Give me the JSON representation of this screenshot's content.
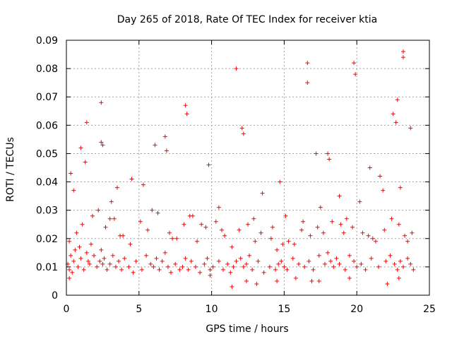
{
  "chart_data": {
    "type": "scatter",
    "title": "Day 265 of 2018, Rate Of TEC Index for receiver ktia",
    "xlabel": "GPS time / hours",
    "ylabel": "ROTI / TECUs",
    "xlim": [
      0,
      25
    ],
    "ylim": [
      0,
      0.09
    ],
    "xticks": [
      0,
      5,
      10,
      15,
      20,
      25
    ],
    "xtick_labels": [
      "0",
      "5",
      "10",
      "15",
      "20",
      "25"
    ],
    "yticks": [
      0,
      0.01,
      0.02,
      0.03,
      0.04,
      0.05,
      0.06,
      0.07,
      0.08,
      0.09
    ],
    "ytick_labels": [
      "0",
      "0.01",
      "0.02",
      "0.03",
      "0.04",
      "0.05",
      "0.06",
      "0.07",
      "0.08",
      "0.09"
    ],
    "grid": true,
    "marker": "+",
    "color": "#ff0000",
    "series": [
      {
        "name": "ROTI",
        "x": [
          0.1,
          0.2,
          0.3,
          0.4,
          0.5,
          0.6,
          0.8,
          1.0,
          1.2,
          1.4,
          1.5,
          1.6,
          1.7,
          1.9,
          2.1,
          2.3,
          2.4,
          2.5,
          2.6,
          2.8,
          3.0,
          3.2,
          3.4,
          3.6,
          3.8,
          4.0,
          4.3,
          4.6,
          4.8,
          5.2,
          5.5,
          5.8,
          6.0,
          6.2,
          6.4,
          6.6,
          6.8,
          7.0,
          7.2,
          7.5,
          7.8,
          8.0,
          8.2,
          8.4,
          8.6,
          8.9,
          9.2,
          9.5,
          9.7,
          9.9,
          10.1,
          10.5,
          10.8,
          11.1,
          11.3,
          11.5,
          11.7,
          12.0,
          12.2,
          12.4,
          12.6,
          12.8,
          13.2,
          13.6,
          14.0,
          14.4,
          14.6,
          14.8,
          15.0,
          15.2,
          15.6,
          16.0,
          16.4,
          16.7,
          17.0,
          17.4,
          17.8,
          18.0,
          18.2,
          18.4,
          18.6,
          18.8,
          19.2,
          19.5,
          19.8,
          20.0,
          20.3,
          20.6,
          21.0,
          21.5,
          22.0,
          22.3,
          22.6,
          22.8,
          23.0,
          23.2,
          23.5,
          23.7,
          23.9,
          0.3,
          1.4,
          2.4,
          3.1,
          6.8,
          8.2,
          11.7,
          12.1,
          16.6,
          16.6,
          19.8,
          19.9,
          23.2,
          23.2,
          22.8,
          22.5,
          2.4,
          6.9,
          8.3,
          0.5,
          1.0,
          3.5,
          4.5,
          5.3,
          9.8,
          13.5,
          14.7,
          17.2,
          18.0,
          20.9,
          21.6,
          23.7,
          3.0,
          5.9,
          8.5,
          9.3,
          10.5,
          12.9,
          14.2,
          15.1,
          16.3,
          17.5,
          18.8,
          20.2,
          21.8,
          23.0,
          0.2,
          0.7,
          1.1,
          1.8,
          2.2,
          2.7,
          3.3,
          3.9,
          4.4,
          5.1,
          5.6,
          6.3,
          7.1,
          7.6,
          8.1,
          8.7,
          9.0,
          9.6,
          10.3,
          10.9,
          11.4,
          11.9,
          12.5,
          13.0,
          13.4,
          14.1,
          14.5,
          15.3,
          15.7,
          16.2,
          16.8,
          17.3,
          17.7,
          18.3,
          18.9,
          19.3,
          19.7,
          20.4,
          20.8,
          21.3,
          21.9,
          22.4,
          22.9,
          23.3,
          23.8,
          1.3,
          2.5,
          6.1,
          12.2,
          18.1,
          22.7,
          0.9,
          3.7,
          7.3,
          10.7,
          14.9,
          19.1,
          21.1,
          23.5,
          11.4,
          12.4,
          13.1,
          14.5,
          15.8,
          16.9,
          22.1,
          22.9,
          0.2,
          9.9,
          17.4,
          19.5
        ],
        "y": [
          0.011,
          0.009,
          0.014,
          0.008,
          0.012,
          0.016,
          0.01,
          0.013,
          0.009,
          0.015,
          0.012,
          0.011,
          0.018,
          0.014,
          0.01,
          0.012,
          0.016,
          0.011,
          0.013,
          0.009,
          0.011,
          0.014,
          0.01,
          0.012,
          0.009,
          0.013,
          0.01,
          0.008,
          0.012,
          0.009,
          0.014,
          0.011,
          0.01,
          0.013,
          0.009,
          0.012,
          0.015,
          0.01,
          0.008,
          0.011,
          0.009,
          0.01,
          0.013,
          0.009,
          0.012,
          0.01,
          0.008,
          0.011,
          0.013,
          0.009,
          0.01,
          0.012,
          0.009,
          0.011,
          0.008,
          0.01,
          0.012,
          0.013,
          0.01,
          0.011,
          0.014,
          0.009,
          0.012,
          0.008,
          0.01,
          0.009,
          0.011,
          0.012,
          0.01,
          0.009,
          0.013,
          0.011,
          0.01,
          0.012,
          0.009,
          0.014,
          0.011,
          0.015,
          0.012,
          0.01,
          0.013,
          0.011,
          0.009,
          0.014,
          0.012,
          0.01,
          0.011,
          0.009,
          0.013,
          0.01,
          0.012,
          0.014,
          0.011,
          0.009,
          0.012,
          0.01,
          0.013,
          0.011,
          0.009,
          0.043,
          0.061,
          0.068,
          0.033,
          0.056,
          0.067,
          0.08,
          0.059,
          0.082,
          0.075,
          0.082,
          0.078,
          0.086,
          0.084,
          0.069,
          0.064,
          0.054,
          0.051,
          0.064,
          0.037,
          0.052,
          0.038,
          0.041,
          0.039,
          0.046,
          0.036,
          0.04,
          0.05,
          0.05,
          0.045,
          0.042,
          0.059,
          0.027,
          0.03,
          0.028,
          0.025,
          0.031,
          0.027,
          0.024,
          0.028,
          0.026,
          0.031,
          0.035,
          0.033,
          0.037,
          0.038,
          0.019,
          0.022,
          0.025,
          0.028,
          0.03,
          0.024,
          0.027,
          0.021,
          0.018,
          0.026,
          0.023,
          0.029,
          0.022,
          0.02,
          0.025,
          0.028,
          0.019,
          0.024,
          0.026,
          0.021,
          0.017,
          0.023,
          0.025,
          0.019,
          0.022,
          0.02,
          0.016,
          0.019,
          0.018,
          0.023,
          0.021,
          0.024,
          0.022,
          0.026,
          0.025,
          0.027,
          0.024,
          0.022,
          0.021,
          0.019,
          0.023,
          0.027,
          0.025,
          0.021,
          0.022,
          0.047,
          0.053,
          0.053,
          0.057,
          0.048,
          0.061,
          0.017,
          0.021,
          0.02,
          0.023,
          0.018,
          0.022,
          0.02,
          0.019,
          0.003,
          0.005,
          0.004,
          0.005,
          0.006,
          0.005,
          0.004,
          0.006,
          0.006,
          0.007,
          0.005,
          0.006
        ]
      }
    ]
  }
}
